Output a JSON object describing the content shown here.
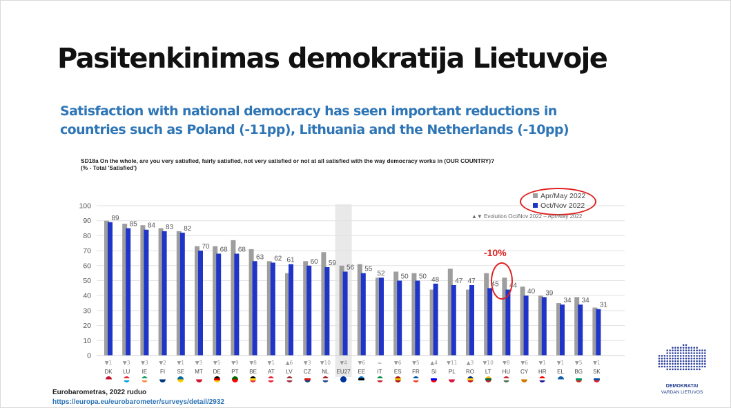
{
  "slide": {
    "title": "Pasitenkinimas demokratija Lietuvoje",
    "subtitle": "Satisfaction with national democracy has seen important reductions in countries such as Poland (-11pp), Lithuania and the Netherlands (-10pp)",
    "question": "SD18a  On the whole, are you very satisfied, fairly satisfied, not very satisfied or not at all satisfied with the way democracy works in (OUR COUNTRY)?",
    "question_sub": "(% - Total 'Satisfied')",
    "callout": "-10%",
    "source": "Eurobarometras, 2022 ruduo",
    "source_link": "https://europa.eu/eurobarometer/surveys/detail/2932",
    "logo_line1": "DEMOKRATAI",
    "logo_line2": "VARDAN LIETUVOS"
  },
  "chart_data": {
    "type": "bar",
    "categories": [
      "DK",
      "LU",
      "IE",
      "FI",
      "SE",
      "MT",
      "DE",
      "PT",
      "BE",
      "AT",
      "LV",
      "CZ",
      "NL",
      "EU27",
      "EE",
      "IT",
      "ES",
      "FR",
      "SI",
      "PL",
      "RO",
      "LT",
      "HU",
      "CY",
      "HR",
      "EL",
      "BG",
      "SK"
    ],
    "series": [
      {
        "name": "Apr/May 2022",
        "color": "#9e9e9e",
        "values": [
          90,
          88,
          87,
          85,
          83,
          73,
          73,
          77,
          71,
          63,
          55,
          63,
          69,
          60,
          61,
          52,
          56,
          55,
          44,
          58,
          44,
          55,
          52,
          46,
          40,
          35,
          39,
          32
        ]
      },
      {
        "name": "Oct/Nov 2022",
        "color": "#1f35c8",
        "values": [
          89,
          85,
          84,
          83,
          82,
          70,
          68,
          68,
          63,
          62,
          61,
          60,
          59,
          56,
          55,
          52,
          50,
          50,
          48,
          47,
          47,
          45,
          44,
          40,
          39,
          34,
          34,
          31
        ]
      }
    ],
    "evolution": [
      "▼1",
      "▼3",
      "▼3",
      "▼2",
      "▼1",
      "▼3",
      "▼5",
      "▼9",
      "▼8",
      "▼1",
      "▲6",
      "▼3",
      "▼10",
      "▼4",
      "▼6",
      "=",
      "▼6",
      "▼5",
      "▲4",
      "▼11",
      "▲3",
      "▼10",
      "▼8",
      "▼6",
      "▼1",
      "▼1",
      "▼5",
      "▼1"
    ],
    "evolution_legend": "▲▼ Evolution Oct/Nov 2022 – Apr/May 2022",
    "yticks": [
      0,
      10,
      20,
      30,
      40,
      50,
      60,
      70,
      80,
      90,
      100
    ],
    "ylim": [
      0,
      100
    ],
    "grid": true,
    "legend_position": "top-right",
    "highlight_category": "EU27",
    "flag_colors": {
      "DK": [
        "#c8102e",
        "#ffffff"
      ],
      "LU": [
        "#ed2939",
        "#ffffff",
        "#00a1de"
      ],
      "IE": [
        "#169b62",
        "#ffffff",
        "#ff883e"
      ],
      "FI": [
        "#ffffff",
        "#003580"
      ],
      "SE": [
        "#006aa7",
        "#fecc00"
      ],
      "MT": [
        "#ffffff",
        "#cf142b"
      ],
      "DE": [
        "#000000",
        "#dd0000",
        "#ffce00"
      ],
      "PT": [
        "#006600",
        "#ff0000"
      ],
      "BE": [
        "#000000",
        "#fdda24",
        "#ef3340"
      ],
      "AT": [
        "#ed2939",
        "#ffffff",
        "#ed2939"
      ],
      "LV": [
        "#9e3039",
        "#ffffff",
        "#9e3039"
      ],
      "CZ": [
        "#ffffff",
        "#d7141a",
        "#11457e"
      ],
      "NL": [
        "#ae1c28",
        "#ffffff",
        "#21468b"
      ],
      "EU27": [
        "#003399"
      ],
      "EE": [
        "#0072ce",
        "#000000",
        "#ffffff"
      ],
      "IT": [
        "#009246",
        "#ffffff",
        "#ce2b37"
      ],
      "ES": [
        "#aa151b",
        "#f1bf00",
        "#aa151b"
      ],
      "FR": [
        "#0055a4",
        "#ffffff",
        "#ef4135"
      ],
      "SI": [
        "#ffffff",
        "#0000ff",
        "#ff0000"
      ],
      "PL": [
        "#ffffff",
        "#dc143c"
      ],
      "RO": [
        "#002b7f",
        "#fcd116",
        "#ce1126"
      ],
      "LT": [
        "#fdb913",
        "#006a44",
        "#c1272d"
      ],
      "HU": [
        "#ce2939",
        "#ffffff",
        "#477050"
      ],
      "CY": [
        "#ffffff",
        "#d57800"
      ],
      "HR": [
        "#ff0000",
        "#ffffff",
        "#171796"
      ],
      "EL": [
        "#0d5eaf",
        "#ffffff"
      ],
      "BG": [
        "#ffffff",
        "#00966e",
        "#d62612"
      ],
      "SK": [
        "#ffffff",
        "#0b4ea2",
        "#ee1c25"
      ]
    }
  }
}
